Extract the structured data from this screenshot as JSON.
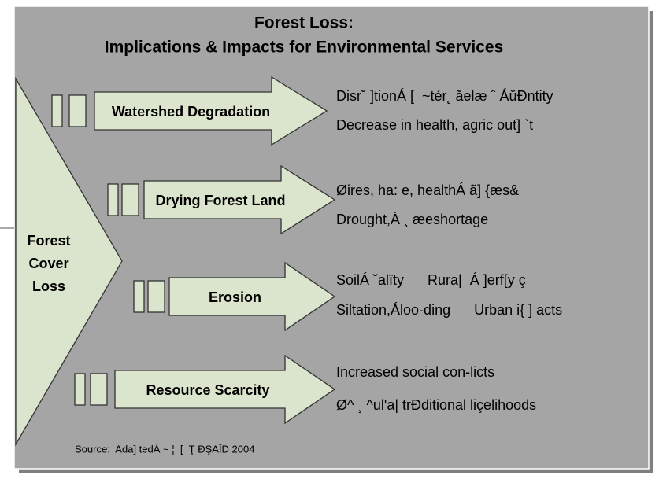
{
  "title": [
    "Forest Loss:",
    "Implications & Impacts for Environmental Services"
  ],
  "cause": [
    "Forest",
    "Cover",
    "Loss"
  ],
  "impacts": [
    {
      "label": "Watershed Degradation",
      "effects": [
        "Disr˘ ]tionÁ [  ~tér˛ ăelæ ˆ ÁŭÐntity",
        "Decrease in health, agric out] ˋt"
      ]
    },
    {
      "label": "Drying Forest Land",
      "effects": [
        "Øires, ha: e, healthÁ ã] {æs&",
        "Drought,Á ¸ æeshortage"
      ]
    },
    {
      "label": "Erosion",
      "effects": [
        "SoilÁ ˘alïty      Rura|  Á ]erf[y ç",
        "Siltation,Áloo-ding      Urban i{ ] acts"
      ]
    },
    {
      "label": "Resource Scarcity",
      "effects": [
        "Increased social con-licts",
        "Ø^ ¸ ^ul'a| trÐditional liçelihoods"
      ]
    }
  ],
  "source": "Source:  Ada] tedÁ ~ ¦  [  Ţ ÐŞAĬD 2004"
}
